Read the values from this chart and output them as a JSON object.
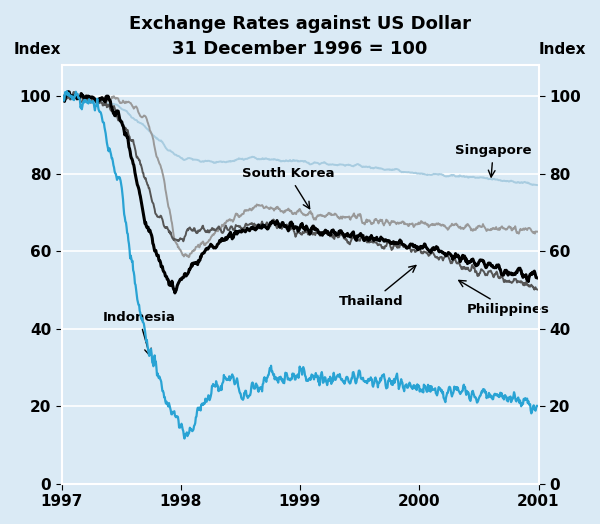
{
  "title": "Exchange Rates against US Dollar",
  "subtitle": "31 December 1996 = 100",
  "ylabel_left": "Index",
  "ylabel_right": "Index",
  "background_color": "#daeaf5",
  "plot_bg_color": "#daeaf5",
  "ylim": [
    0,
    108
  ],
  "yticks": [
    0,
    20,
    40,
    60,
    80,
    100
  ],
  "series": {
    "Singapore": {
      "color": "#a8cce0",
      "linewidth": 1.4,
      "zorder": 2
    },
    "South Korea": {
      "color": "#999999",
      "linewidth": 1.4,
      "zorder": 3
    },
    "Thailand": {
      "color": "#000000",
      "linewidth": 2.2,
      "zorder": 5
    },
    "Philippines": {
      "color": "#555555",
      "linewidth": 1.4,
      "zorder": 4
    },
    "Indonesia": {
      "color": "#29a3d4",
      "linewidth": 1.6,
      "zorder": 6
    }
  }
}
